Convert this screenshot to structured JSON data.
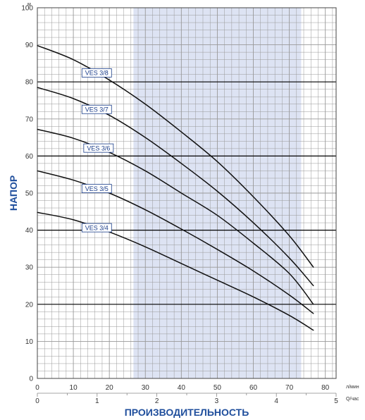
{
  "chart_data": {
    "type": "line",
    "ylabel": "НАПОР",
    "yunit": "м",
    "xlabel": "ПРОИЗВОДИТЕЛЬНОСТЬ",
    "xunit_primary": "л/мин",
    "xunit_secondary": "Q/час",
    "ylim": [
      0,
      100
    ],
    "xlim": [
      0,
      83
    ],
    "y_ticks": [
      0,
      10,
      20,
      30,
      40,
      50,
      60,
      70,
      80,
      90,
      100
    ],
    "x_ticks": [
      0,
      10,
      20,
      30,
      40,
      50,
      60,
      70,
      80
    ],
    "x2_ticks": [
      0,
      1,
      2,
      3,
      4,
      5
    ],
    "grid": true,
    "highlight_band": {
      "x_from": 26.7,
      "x_to": 73.3,
      "color": "#dde3f3"
    },
    "colors": {
      "curve": "#111111",
      "grid": "#999999",
      "major_grid": "#000000",
      "label_border": "#1a3d8a",
      "axis_title": "#1f4e9c"
    },
    "series": [
      {
        "name": "VES 3/8",
        "label_at": 16.5,
        "x": [
          0,
          10,
          20,
          30,
          40,
          50,
          60,
          70,
          76.7
        ],
        "y": [
          89.8,
          86,
          80.5,
          74,
          66.5,
          58.5,
          49,
          38.5,
          30
        ]
      },
      {
        "name": "VES 3/7",
        "label_at": 16.5,
        "x": [
          0,
          10,
          20,
          30,
          40,
          50,
          60,
          70,
          76.7
        ],
        "y": [
          78.5,
          75.5,
          71,
          65,
          58,
          50.5,
          42,
          32.5,
          25
        ]
      },
      {
        "name": "VES 3/6",
        "label_at": 17,
        "x": [
          0,
          10,
          20,
          30,
          40,
          50,
          60,
          70,
          76.7
        ],
        "y": [
          67.2,
          64.8,
          61,
          56,
          50,
          44,
          36.5,
          28.3,
          20
        ]
      },
      {
        "name": "VES 3/5",
        "label_at": 16.5,
        "x": [
          0,
          10,
          20,
          30,
          40,
          50,
          60,
          70,
          76.7
        ],
        "y": [
          56,
          53.5,
          50,
          45.5,
          40.3,
          34.8,
          29,
          22.5,
          17.5
        ]
      },
      {
        "name": "VES 3/4",
        "label_at": 16.5,
        "x": [
          0,
          10,
          20,
          30,
          40,
          50,
          60,
          70,
          76.7
        ],
        "y": [
          44.8,
          42.8,
          39.5,
          35.5,
          31,
          26.5,
          22,
          17,
          13
        ]
      }
    ]
  }
}
